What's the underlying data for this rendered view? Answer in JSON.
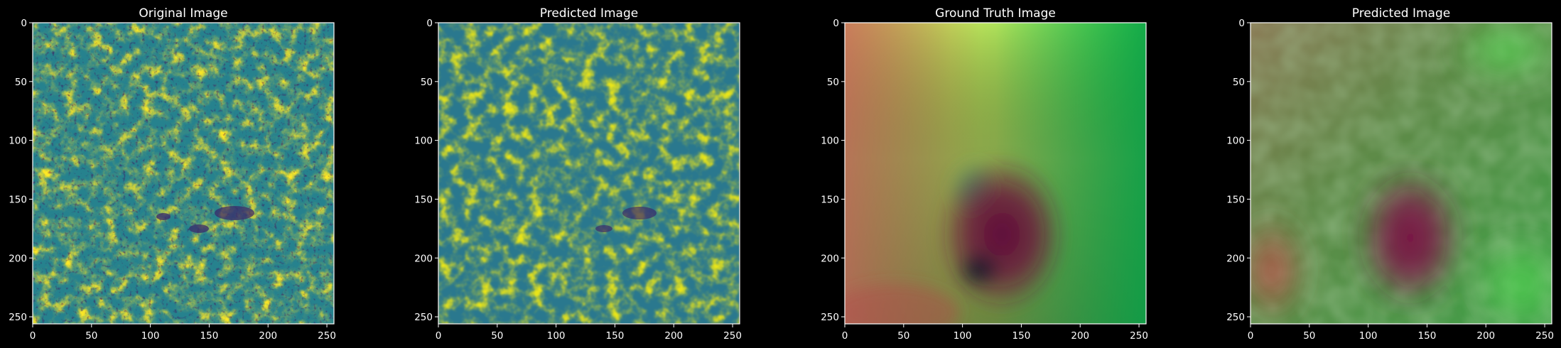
{
  "figure": {
    "background": "#000000",
    "text_color": "#ffffff"
  },
  "chart_data": [
    {
      "type": "heatmap",
      "title": "Original Image",
      "colormap": "viridis",
      "content": "aerial-tree-canopy",
      "xlim": [
        0,
        256
      ],
      "ylim": [
        256,
        0
      ],
      "xticks": [
        0,
        50,
        100,
        150,
        200,
        250
      ],
      "yticks": [
        0,
        50,
        100,
        150,
        200,
        250
      ],
      "grid": false
    },
    {
      "type": "heatmap",
      "title": "Predicted Image",
      "colormap": "viridis",
      "content": "aerial-tree-canopy-smoothed",
      "xlim": [
        0,
        256
      ],
      "ylim": [
        256,
        0
      ],
      "xticks": [
        0,
        50,
        100,
        150,
        200,
        250
      ],
      "yticks": [
        0,
        50,
        100,
        150,
        200,
        250
      ],
      "grid": false
    },
    {
      "type": "heatmap",
      "title": "Ground Truth Image",
      "colormap": "rgb-vector-field",
      "content": "smooth-flow-field",
      "singularities": [
        {
          "x": 110,
          "y": 150
        },
        {
          "x": 120,
          "y": 218
        }
      ],
      "xlim": [
        0,
        256
      ],
      "ylim": [
        256,
        0
      ],
      "xticks": [
        0,
        50,
        100,
        150,
        200,
        250
      ],
      "yticks": [
        0,
        50,
        100,
        150,
        200,
        250
      ],
      "grid": false
    },
    {
      "type": "heatmap",
      "title": "Predicted Image",
      "colormap": "rgb-vector-field",
      "content": "blurry-flow-field",
      "xlim": [
        0,
        256
      ],
      "ylim": [
        256,
        0
      ],
      "xticks": [
        0,
        50,
        100,
        150,
        200,
        250
      ],
      "yticks": [
        0,
        50,
        100,
        150,
        200,
        250
      ],
      "grid": false
    }
  ]
}
